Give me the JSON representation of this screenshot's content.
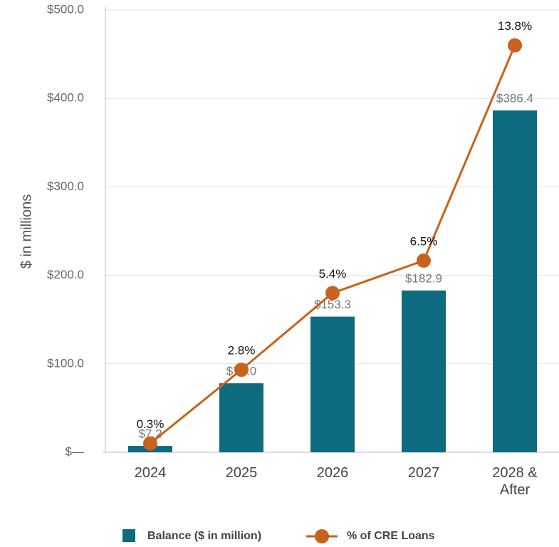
{
  "chart_data": {
    "type": "bar",
    "y_axis_label": "$ in millions",
    "categories": [
      "2024",
      "2025",
      "2026",
      "2027",
      "2028 & After"
    ],
    "series": [
      {
        "name": "Balance ($ in million)",
        "type": "bar",
        "color": "#0e6b7f",
        "values": [
          7.2,
          78.0,
          153.3,
          182.9,
          386.4
        ],
        "value_labels": [
          "$7.2",
          "$78.0",
          "$153.3",
          "$182.9",
          "$386.4"
        ]
      },
      {
        "name": "% of CRE Loans",
        "type": "line",
        "axis": "y2",
        "color": "#c8621c",
        "values": [
          0.3,
          2.8,
          5.4,
          6.5,
          13.8
        ],
        "value_labels": [
          "0.3%",
          "2.8%",
          "5.4%",
          "6.5%",
          "13.8%"
        ]
      }
    ],
    "ylim": [
      0,
      500
    ],
    "yticks": [
      {
        "value": 0,
        "label": "$—"
      },
      {
        "value": 100,
        "label": "$100.0"
      },
      {
        "value": 200,
        "label": "$200.0"
      },
      {
        "value": 300,
        "label": "$300.0"
      },
      {
        "value": 400,
        "label": "$400.0"
      },
      {
        "value": 500,
        "label": "$500.0"
      }
    ],
    "y2lim": [
      0,
      15
    ],
    "grid": true
  }
}
